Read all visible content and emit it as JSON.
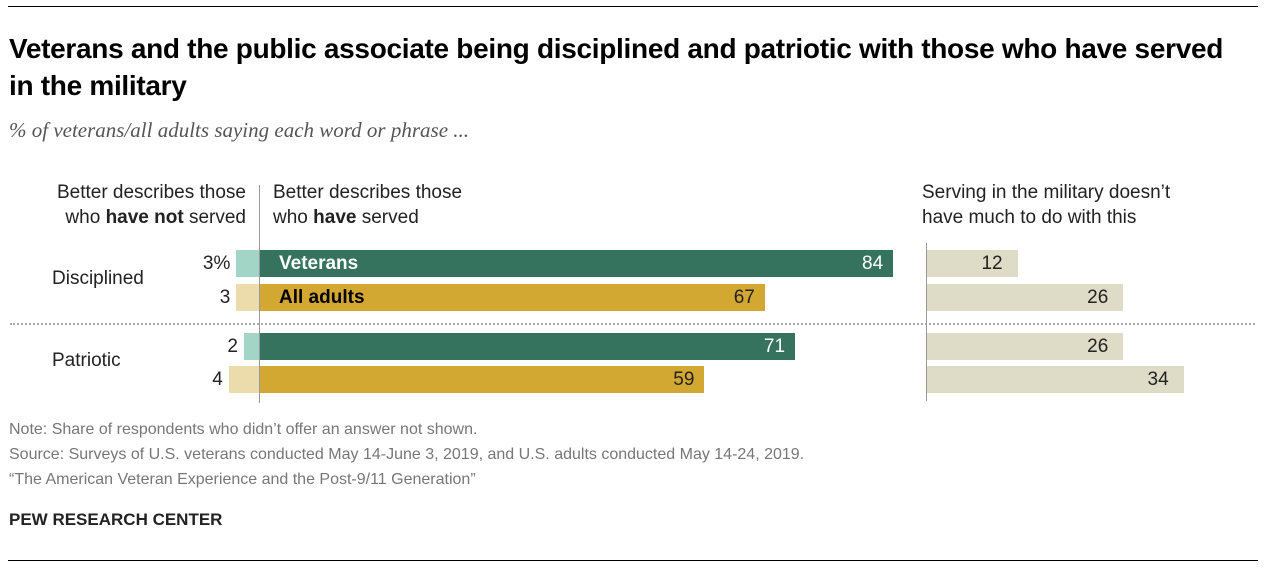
{
  "title": "Veterans and the public associate being disciplined and patriotic with those who have served in the military",
  "subtitle": "% of veterans/all adults saying each word or phrase ...",
  "headers": {
    "left_1": "Better describes those",
    "left_2a": "who ",
    "left_2b": "have not",
    "left_2c": " served",
    "mid_1": "Better describes those",
    "mid_2a": "who ",
    "mid_2b": "have",
    "mid_2c": " served",
    "right_1": "Serving in the military doesn’t",
    "right_2": "have much to do with this"
  },
  "footer": {
    "note": "Note: Share of respondents who didn’t offer an answer not shown.",
    "source": "Source: Surveys of U.S. veterans conducted May 14-June 3, 2019, and U.S. adults conducted May 14-24, 2019.",
    "report": "“The American Veteran Experience and the Post-9/11 Generation”",
    "brand": "PEW RESEARCH CENTER"
  },
  "chart_data": {
    "type": "bar",
    "categories": [
      "Disciplined",
      "Patriotic"
    ],
    "series": [
      {
        "name": "Veterans",
        "not_served": [
          3,
          2
        ],
        "not_served_labels": [
          "3%",
          "2"
        ],
        "served": [
          84,
          71
        ],
        "no_difference": [
          12,
          26
        ],
        "color": "#35735f",
        "light_color": "#a3d5c6"
      },
      {
        "name": "All adults",
        "not_served": [
          3,
          4
        ],
        "not_served_labels": [
          "3",
          "4"
        ],
        "served": [
          67,
          59
        ],
        "no_difference": [
          26,
          34
        ],
        "color": "#d3a832",
        "light_color": "#ecdcac"
      }
    ],
    "no_difference_color": "#dedbc6",
    "unit": "%"
  }
}
